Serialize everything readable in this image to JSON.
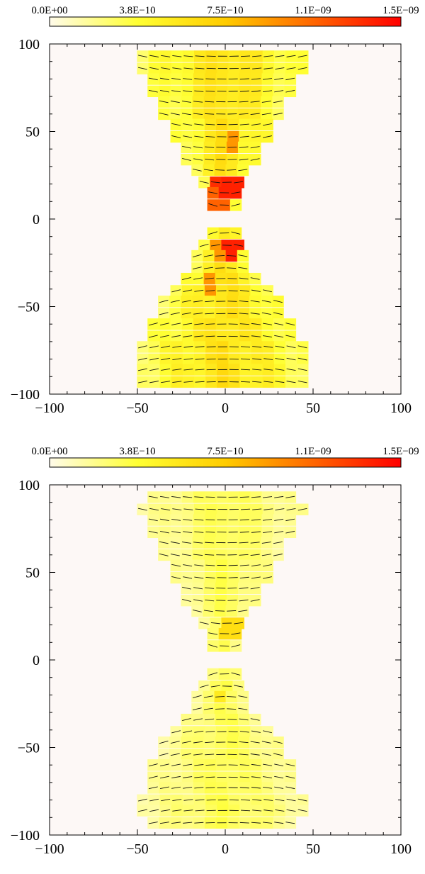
{
  "chart_data": [
    {
      "type": "heatmap",
      "title": "",
      "xlabel": "",
      "ylabel": "",
      "xlim": [
        -100,
        100
      ],
      "ylim": [
        -100,
        100
      ],
      "cell_size": 6.5,
      "colorbar": {
        "min": 0,
        "max": 1.5e-09,
        "tick_labels": [
          "0.0E+00",
          "3.8E−10",
          "7.5E−10",
          "1.1E−09",
          "1.5E−09"
        ],
        "colors": [
          "#fffbea",
          "#ffff33",
          "#ffcc00",
          "#ff6600",
          "#ff0000"
        ]
      },
      "x_ticks": [
        {
          "value": -100,
          "label": "−100"
        },
        {
          "value": -50,
          "label": "−50"
        },
        {
          "value": 0,
          "label": "0"
        },
        {
          "value": 50,
          "label": "50"
        },
        {
          "value": 100,
          "label": "100"
        }
      ],
      "y_ticks": [
        {
          "value": 100,
          "label": "100"
        },
        {
          "value": 50,
          "label": "50"
        },
        {
          "value": 0,
          "label": "0"
        },
        {
          "value": -50,
          "label": "−50"
        },
        {
          "value": -100,
          "label": "−100"
        }
      ],
      "hotspots": [
        {
          "x": -3,
          "y": 23,
          "value": 1.4e-09
        },
        {
          "x": 3,
          "y": 17,
          "value": 1.45e-09
        },
        {
          "x": -3,
          "y": 11,
          "value": 1.2e-09
        },
        {
          "x": 3,
          "y": 43,
          "value": 1e-09
        },
        {
          "x": 3,
          "y": -17,
          "value": 1.45e-09
        },
        {
          "x": -3,
          "y": -13,
          "value": 1e-09
        },
        {
          "x": -3,
          "y": -23,
          "value": 1e-09
        },
        {
          "x": -10,
          "y": -37,
          "value": 1e-09
        }
      ],
      "base_level": 6e-10,
      "row_half_widths": [
        {
          "y": 93,
          "hw": 47
        },
        {
          "y": 86,
          "hw": 47
        },
        {
          "y": 80,
          "hw": 41
        },
        {
          "y": 73,
          "hw": 41
        },
        {
          "y": 67,
          "hw": 35
        },
        {
          "y": 60,
          "hw": 35
        },
        {
          "y": 54,
          "hw": 28
        },
        {
          "y": 47,
          "hw": 28
        },
        {
          "y": 41,
          "hw": 22
        },
        {
          "y": 34,
          "hw": 22
        },
        {
          "y": 28,
          "hw": 16
        },
        {
          "y": 21,
          "hw": 12
        },
        {
          "y": 15,
          "hw": 7
        },
        {
          "y": 8,
          "hw": 7
        },
        {
          "y": -8,
          "hw": 7
        },
        {
          "y": -15,
          "hw": 12
        },
        {
          "y": -21,
          "hw": 16
        },
        {
          "y": -28,
          "hw": 16
        },
        {
          "y": -34,
          "hw": 22
        },
        {
          "y": -41,
          "hw": 28
        },
        {
          "y": -47,
          "hw": 35
        },
        {
          "y": -54,
          "hw": 35
        },
        {
          "y": -60,
          "hw": 41
        },
        {
          "y": -67,
          "hw": 41
        },
        {
          "y": -73,
          "hw": 47
        },
        {
          "y": -80,
          "hw": 47
        },
        {
          "y": -86,
          "hw": 47
        },
        {
          "y": -93,
          "hw": 47
        }
      ]
    },
    {
      "type": "heatmap",
      "title": "",
      "xlabel": "",
      "ylabel": "",
      "xlim": [
        -100,
        100
      ],
      "ylim": [
        -100,
        100
      ],
      "cell_size": 6.5,
      "colorbar": {
        "min": 0,
        "max": 1.5e-09,
        "tick_labels": [
          "0.0E+00",
          "3.8E−10",
          "7.5E−10",
          "1.1E−09",
          "1.5E−09"
        ],
        "colors": [
          "#fffbea",
          "#ffff33",
          "#ffcc00",
          "#ff6600",
          "#ff0000"
        ]
      },
      "x_ticks": [
        {
          "value": -100,
          "label": "−100"
        },
        {
          "value": -50,
          "label": "−50"
        },
        {
          "value": 0,
          "label": "0"
        },
        {
          "value": 50,
          "label": "50"
        },
        {
          "value": 100,
          "label": "100"
        }
      ],
      "y_ticks": [
        {
          "value": 100,
          "label": "100"
        },
        {
          "value": 50,
          "label": "50"
        },
        {
          "value": 0,
          "label": "0"
        },
        {
          "value": -50,
          "label": "−50"
        },
        {
          "value": -100,
          "label": "−100"
        }
      ],
      "hotspots": [
        {
          "x": 3,
          "y": 17,
          "value": 6.5e-10
        },
        {
          "x": -3,
          "y": -23,
          "value": 5.5e-10
        }
      ],
      "base_level": 3.2e-10,
      "row_half_widths": [
        {
          "y": 93,
          "hw": 41
        },
        {
          "y": 86,
          "hw": 47
        },
        {
          "y": 80,
          "hw": 41
        },
        {
          "y": 73,
          "hw": 41
        },
        {
          "y": 67,
          "hw": 35
        },
        {
          "y": 60,
          "hw": 35
        },
        {
          "y": 54,
          "hw": 28
        },
        {
          "y": 47,
          "hw": 28
        },
        {
          "y": 41,
          "hw": 22
        },
        {
          "y": 34,
          "hw": 22
        },
        {
          "y": 28,
          "hw": 16
        },
        {
          "y": 21,
          "hw": 12
        },
        {
          "y": 15,
          "hw": 7
        },
        {
          "y": 8,
          "hw": 7
        },
        {
          "y": -8,
          "hw": 7
        },
        {
          "y": -15,
          "hw": 12
        },
        {
          "y": -21,
          "hw": 16
        },
        {
          "y": -28,
          "hw": 16
        },
        {
          "y": -34,
          "hw": 22
        },
        {
          "y": -41,
          "hw": 28
        },
        {
          "y": -47,
          "hw": 35
        },
        {
          "y": -54,
          "hw": 35
        },
        {
          "y": -60,
          "hw": 41
        },
        {
          "y": -67,
          "hw": 41
        },
        {
          "y": -73,
          "hw": 41
        },
        {
          "y": -80,
          "hw": 47
        },
        {
          "y": -86,
          "hw": 47
        },
        {
          "y": -93,
          "hw": 41
        }
      ]
    }
  ]
}
